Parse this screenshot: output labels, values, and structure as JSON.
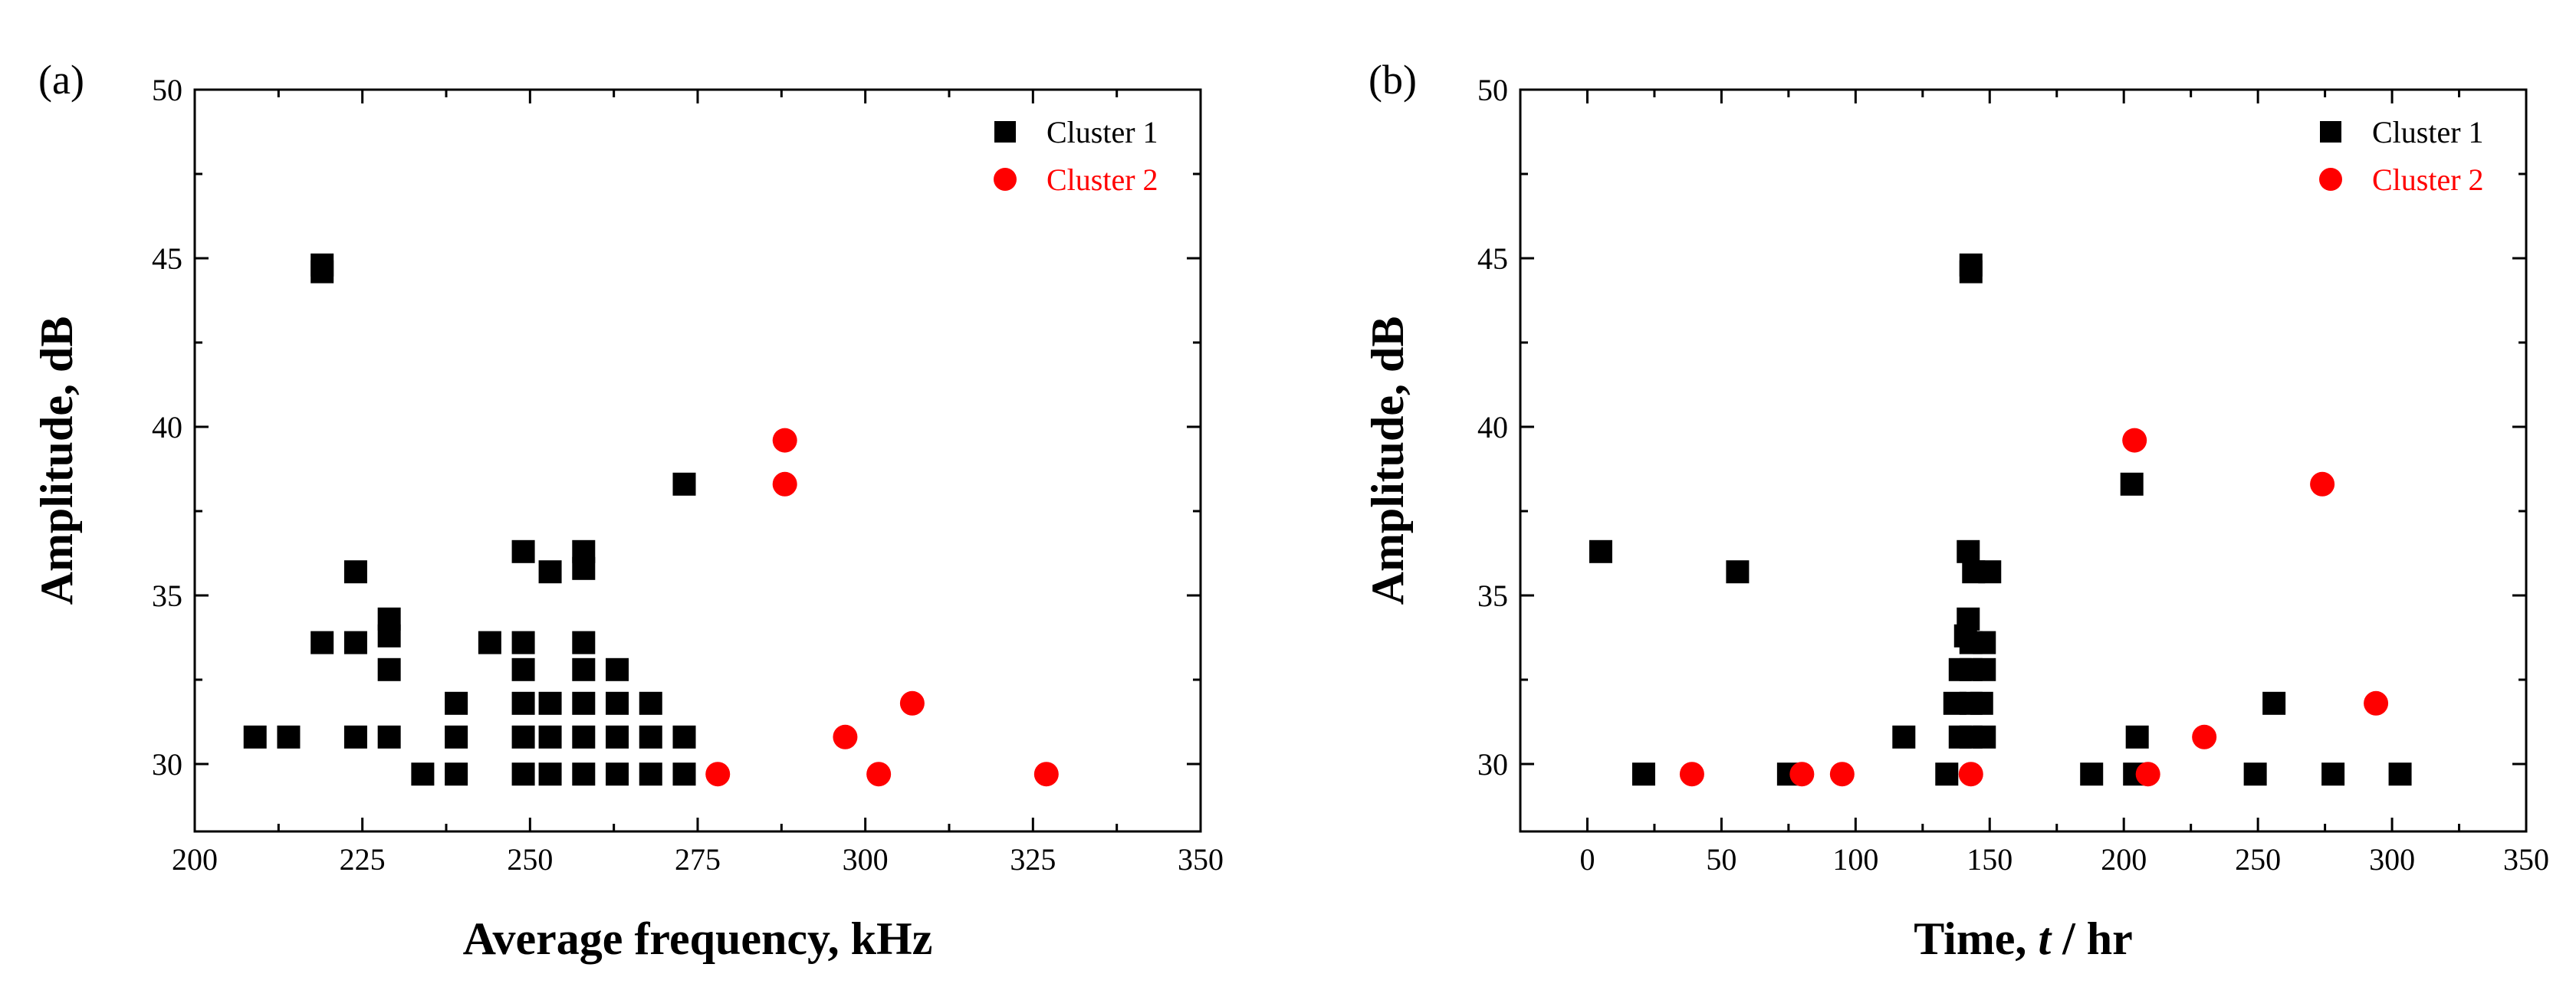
{
  "colors": {
    "cluster1": "#000000",
    "cluster2": "#ff0000",
    "axis": "#000000",
    "background": "#ffffff"
  },
  "chart_data": [
    {
      "type": "scatter",
      "panel_label": "(a)",
      "xlabel": "Average frequency, kHz",
      "ylabel": "Amplitude, dB",
      "xlim": [
        200,
        350
      ],
      "ylim": [
        28,
        50
      ],
      "xticks": [
        "200",
        "225",
        "250",
        "275",
        "300",
        "325",
        "350"
      ],
      "yticks": [
        "30",
        "35",
        "40",
        "45",
        "50"
      ],
      "legend_position": "top-right",
      "grid": false,
      "series": [
        {
          "name": "Cluster 1",
          "marker": "square",
          "color": "#000000",
          "points": [
            [
              219,
              44.8
            ],
            [
              219,
              44.6
            ],
            [
              273,
              38.3
            ],
            [
              224,
              35.7
            ],
            [
              249,
              36.3
            ],
            [
              253,
              35.7
            ],
            [
              258,
              36.3
            ],
            [
              258,
              35.8
            ],
            [
              229,
              34.3
            ],
            [
              229,
              33.8
            ],
            [
              219,
              33.6
            ],
            [
              224,
              33.6
            ],
            [
              244,
              33.6
            ],
            [
              249,
              33.6
            ],
            [
              258,
              33.6
            ],
            [
              229,
              32.8
            ],
            [
              249,
              32.8
            ],
            [
              258,
              32.8
            ],
            [
              263,
              32.8
            ],
            [
              239,
              31.8
            ],
            [
              249,
              31.8
            ],
            [
              253,
              31.8
            ],
            [
              258,
              31.8
            ],
            [
              263,
              31.8
            ],
            [
              268,
              31.8
            ],
            [
              209,
              30.8
            ],
            [
              214,
              30.8
            ],
            [
              224,
              30.8
            ],
            [
              229,
              30.8
            ],
            [
              239,
              30.8
            ],
            [
              249,
              30.8
            ],
            [
              253,
              30.8
            ],
            [
              258,
              30.8
            ],
            [
              263,
              30.8
            ],
            [
              268,
              30.8
            ],
            [
              273,
              30.8
            ],
            [
              234,
              29.7
            ],
            [
              239,
              29.7
            ],
            [
              249,
              29.7
            ],
            [
              253,
              29.7
            ],
            [
              258,
              29.7
            ],
            [
              263,
              29.7
            ],
            [
              268,
              29.7
            ],
            [
              273,
              29.7
            ]
          ]
        },
        {
          "name": "Cluster 2",
          "marker": "circle",
          "color": "#ff0000",
          "points": [
            [
              288,
              39.6
            ],
            [
              288,
              38.3
            ],
            [
              297,
              30.8
            ],
            [
              307,
              31.8
            ],
            [
              278,
              29.7
            ],
            [
              302,
              29.7
            ],
            [
              327,
              29.7
            ]
          ]
        }
      ]
    },
    {
      "type": "scatter",
      "panel_label": "(b)",
      "xlabel": "Time, t / hr",
      "xlabel_parts": [
        "Time, ",
        "t",
        " / hr"
      ],
      "ylabel": "Amplitude, dB",
      "xlim": [
        -25,
        350
      ],
      "ylim": [
        28,
        50
      ],
      "xticks": [
        "0",
        "50",
        "100",
        "150",
        "200",
        "250",
        "300",
        "350"
      ],
      "yticks": [
        "30",
        "35",
        "40",
        "45",
        "50"
      ],
      "legend_position": "top-right",
      "grid": false,
      "series": [
        {
          "name": "Cluster 1",
          "marker": "square",
          "color": "#000000",
          "points": [
            [
              143,
              44.8
            ],
            [
              143,
              44.6
            ],
            [
              203,
              38.3
            ],
            [
              5,
              36.3
            ],
            [
              56,
              35.7
            ],
            [
              142,
              36.3
            ],
            [
              144,
              35.7
            ],
            [
              150,
              35.7
            ],
            [
              142,
              34.3
            ],
            [
              141,
              33.8
            ],
            [
              143,
              33.6
            ],
            [
              148,
              33.6
            ],
            [
              139,
              32.8
            ],
            [
              143,
              32.8
            ],
            [
              148,
              32.8
            ],
            [
              137,
              31.8
            ],
            [
              143,
              31.8
            ],
            [
              147,
              31.8
            ],
            [
              256,
              31.8
            ],
            [
              118,
              30.8
            ],
            [
              139,
              30.8
            ],
            [
              143,
              30.8
            ],
            [
              148,
              30.8
            ],
            [
              205,
              30.8
            ],
            [
              21,
              29.7
            ],
            [
              75,
              29.7
            ],
            [
              134,
              29.7
            ],
            [
              188,
              29.7
            ],
            [
              204,
              29.7
            ],
            [
              249,
              29.7
            ],
            [
              278,
              29.7
            ],
            [
              303,
              29.7
            ]
          ]
        },
        {
          "name": "Cluster 2",
          "marker": "circle",
          "color": "#ff0000",
          "points": [
            [
              204,
              39.6
            ],
            [
              274,
              38.3
            ],
            [
              294,
              31.8
            ],
            [
              230,
              30.8
            ],
            [
              39,
              29.7
            ],
            [
              80,
              29.7
            ],
            [
              95,
              29.7
            ],
            [
              143,
              29.7
            ],
            [
              209,
              29.7
            ]
          ]
        }
      ]
    }
  ]
}
